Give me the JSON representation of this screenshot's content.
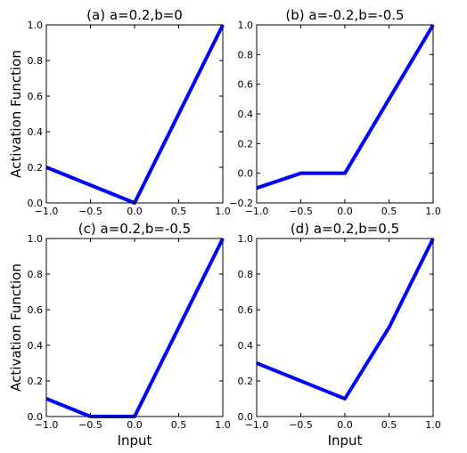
{
  "figure": {
    "xlabel": "Input",
    "ylabel": "Activation Function"
  },
  "chart_data": [
    {
      "type": "line",
      "title": "(a) a=0.2,b=0",
      "xlim": [
        -1.0,
        1.0
      ],
      "ylim": [
        0.0,
        1.0
      ],
      "xticks": [
        "−1.0",
        "−0.5",
        "0.0",
        "0.5",
        "1.0"
      ],
      "yticks": [
        "0.0",
        "0.2",
        "0.4",
        "0.6",
        "0.8",
        "1.0"
      ],
      "series": [
        {
          "color": "#0000ff",
          "x": [
            -1.0,
            0.0,
            1.0
          ],
          "y": [
            0.2,
            0.0,
            1.0
          ]
        }
      ]
    },
    {
      "type": "line",
      "title": "(b) a=-0.2,b=-0.5",
      "xlim": [
        -1.0,
        1.0
      ],
      "ylim": [
        -0.2,
        1.0
      ],
      "xticks": [
        "−1.0",
        "−0.5",
        "0.0",
        "0.5",
        "1.0"
      ],
      "yticks": [
        "−0.2",
        "0.0",
        "0.2",
        "0.4",
        "0.6",
        "0.8",
        "1.0"
      ],
      "series": [
        {
          "color": "#0000ff",
          "x": [
            -1.0,
            -0.5,
            0.0,
            1.0
          ],
          "y": [
            -0.1,
            0.0,
            0.0,
            1.0
          ]
        }
      ]
    },
    {
      "type": "line",
      "title": "(c) a=0.2,b=-0.5",
      "xlim": [
        -1.0,
        1.0
      ],
      "ylim": [
        0.0,
        1.0
      ],
      "xticks": [
        "−1.0",
        "−0.5",
        "0.0",
        "0.5",
        "1.0"
      ],
      "yticks": [
        "0.0",
        "0.2",
        "0.4",
        "0.6",
        "0.8",
        "1.0"
      ],
      "series": [
        {
          "color": "#0000ff",
          "x": [
            -1.0,
            -0.5,
            0.0,
            1.0
          ],
          "y": [
            0.1,
            0.0,
            0.0,
            1.0
          ]
        }
      ]
    },
    {
      "type": "line",
      "title": "(d) a=0.2,b=0.5",
      "xlim": [
        -1.0,
        1.0
      ],
      "ylim": [
        0.0,
        1.0
      ],
      "xticks": [
        "−1.0",
        "−0.5",
        "0.0",
        "0.5",
        "1.0"
      ],
      "yticks": [
        "0.0",
        "0.2",
        "0.4",
        "0.6",
        "0.8",
        "1.0"
      ],
      "series": [
        {
          "color": "#0000ff",
          "x": [
            -1.0,
            0.0,
            0.5,
            1.0
          ],
          "y": [
            0.3,
            0.1,
            0.5,
            1.0
          ]
        }
      ]
    }
  ]
}
